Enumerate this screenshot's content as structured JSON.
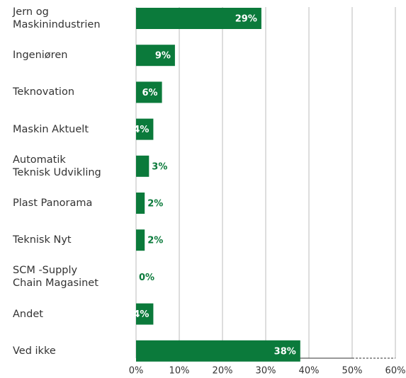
{
  "chart_data": {
    "type": "bar",
    "orientation": "horizontal",
    "categories": [
      "Jern og\nMaskinindustrien",
      "Ingeniøren",
      "Teknovation",
      "Maskin Aktuelt",
      "Automatik\nTeknisk Udvikling",
      "Plast Panorama",
      "Teknisk Nyt",
      "SCM -Supply\nChain Magasinet",
      "Andet",
      "Ved ikke"
    ],
    "values": [
      29,
      9,
      6,
      4,
      3,
      2,
      2,
      0,
      4,
      38
    ],
    "value_labels": [
      "29%",
      "9%",
      "6%",
      "4%",
      "3%",
      "2%",
      "2%",
      "0%",
      "4%",
      "38%"
    ],
    "color": "#0b7a3b",
    "xlim": [
      0,
      60
    ],
    "xticks": [
      {
        "value": 0,
        "label": "0%"
      },
      {
        "value": 10,
        "label": "10%"
      },
      {
        "value": 20,
        "label": "20%"
      },
      {
        "value": 30,
        "label": "30%"
      },
      {
        "value": 40,
        "label": "40%"
      },
      {
        "value": 50,
        "label": "50%"
      },
      {
        "value": 60,
        "label": "60%"
      }
    ],
    "grid": true
  }
}
